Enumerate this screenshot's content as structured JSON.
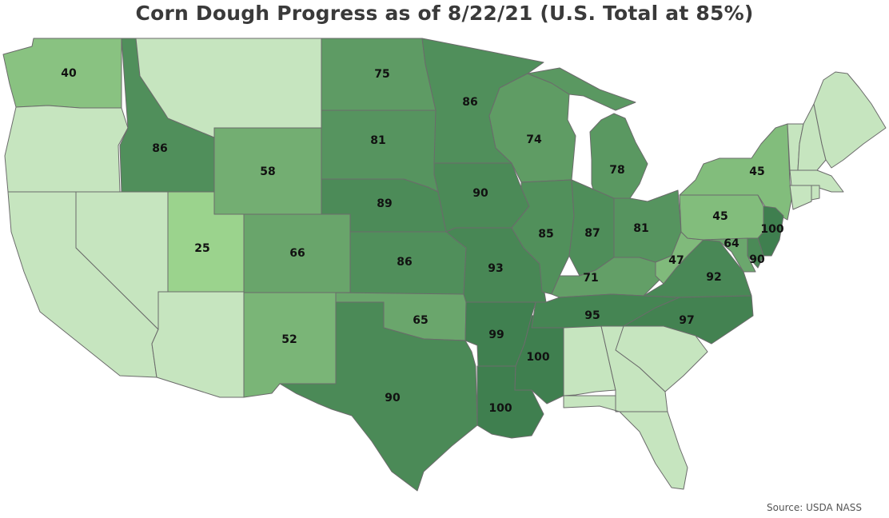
{
  "title": "Corn Dough Progress as of 8/22/21 (U.S. Total at 85%)",
  "source": "Source: USDA NASS",
  "colors": {
    "nodata": "#c6e5bf",
    "low": "#9bd38d",
    "high": "#3f7f4f",
    "border": "#6b6b6b",
    "background": "#ffffff"
  },
  "chart_data": {
    "type": "choropleth",
    "metric": "Corn dough progress (%)",
    "as_of": "8/22/21",
    "us_total": 85,
    "states": [
      {
        "id": "WA",
        "value": 40
      },
      {
        "id": "OR",
        "value": null
      },
      {
        "id": "CA",
        "value": null
      },
      {
        "id": "NV",
        "value": null
      },
      {
        "id": "ID",
        "value": 86
      },
      {
        "id": "MT",
        "value": null
      },
      {
        "id": "WY",
        "value": 58
      },
      {
        "id": "UT",
        "value": 25
      },
      {
        "id": "AZ",
        "value": null
      },
      {
        "id": "CO",
        "value": 66
      },
      {
        "id": "NM",
        "value": 52
      },
      {
        "id": "ND",
        "value": 75
      },
      {
        "id": "SD",
        "value": 81
      },
      {
        "id": "NE",
        "value": 89
      },
      {
        "id": "KS",
        "value": 86
      },
      {
        "id": "OK",
        "value": 65
      },
      {
        "id": "TX",
        "value": 90
      },
      {
        "id": "MN",
        "value": 86
      },
      {
        "id": "IA",
        "value": 90
      },
      {
        "id": "MO",
        "value": 93
      },
      {
        "id": "AR",
        "value": 99
      },
      {
        "id": "LA",
        "value": 100
      },
      {
        "id": "WI",
        "value": 74
      },
      {
        "id": "IL",
        "value": 85
      },
      {
        "id": "MS",
        "value": 100
      },
      {
        "id": "MI",
        "value": 78
      },
      {
        "id": "IN",
        "value": 87
      },
      {
        "id": "KY",
        "value": 71
      },
      {
        "id": "TN",
        "value": 95
      },
      {
        "id": "AL",
        "value": null
      },
      {
        "id": "OH",
        "value": 81
      },
      {
        "id": "WV",
        "value": 47
      },
      {
        "id": "VA",
        "value": 92
      },
      {
        "id": "NC",
        "value": 97
      },
      {
        "id": "SC",
        "value": null
      },
      {
        "id": "GA",
        "value": null
      },
      {
        "id": "FL",
        "value": null
      },
      {
        "id": "PA",
        "value": 45
      },
      {
        "id": "NY",
        "value": 45
      },
      {
        "id": "NJ",
        "value": 100
      },
      {
        "id": "DE",
        "value": 90
      },
      {
        "id": "MD",
        "value": 64
      },
      {
        "id": "VT",
        "value": null
      },
      {
        "id": "NH",
        "value": null
      },
      {
        "id": "ME",
        "value": null
      },
      {
        "id": "MA",
        "value": null
      },
      {
        "id": "CT",
        "value": null
      },
      {
        "id": "RI",
        "value": null
      }
    ]
  }
}
